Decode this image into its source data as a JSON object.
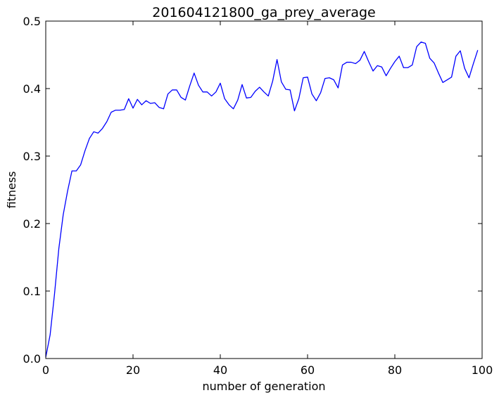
{
  "chart_data": {
    "type": "line",
    "title": "201604121800_ga_prey_average",
    "xlabel": "number of generation",
    "ylabel": "fitness",
    "xlim": [
      0,
      100
    ],
    "ylim": [
      0.0,
      0.5
    ],
    "xticks": [
      0,
      20,
      40,
      60,
      80,
      100
    ],
    "xtick_labels": [
      "0",
      "20",
      "40",
      "60",
      "80",
      "100"
    ],
    "yticks": [
      0.0,
      0.1,
      0.2,
      0.3,
      0.4,
      0.5
    ],
    "ytick_labels": [
      "0.0",
      "0.1",
      "0.2",
      "0.3",
      "0.4",
      "0.5"
    ],
    "grid": false,
    "line_color": "#0000ff",
    "series": [
      {
        "x": [
          0,
          1,
          2,
          3,
          4,
          5,
          6,
          7,
          8,
          9,
          10,
          11,
          12,
          13,
          14,
          15,
          16,
          17,
          18,
          19,
          20,
          21,
          22,
          23,
          24,
          25,
          26,
          27,
          28,
          29,
          30,
          31,
          32,
          33,
          34,
          35,
          36,
          37,
          38,
          39,
          40,
          41,
          42,
          43,
          44,
          45,
          46,
          47,
          48,
          49,
          50,
          51,
          52,
          53,
          54,
          55,
          56,
          57,
          58,
          59,
          60,
          61,
          62,
          63,
          64,
          65,
          66,
          67,
          68,
          69,
          70,
          71,
          72,
          73,
          74,
          75,
          76,
          77,
          78,
          79,
          80,
          81,
          82,
          83,
          84,
          85,
          86,
          87,
          88,
          89,
          90,
          91,
          92,
          93,
          94,
          95,
          96,
          97,
          98,
          99
        ],
        "values": [
          0.002,
          0.035,
          0.095,
          0.163,
          0.213,
          0.248,
          0.278,
          0.278,
          0.287,
          0.308,
          0.326,
          0.336,
          0.334,
          0.341,
          0.351,
          0.365,
          0.368,
          0.368,
          0.369,
          0.385,
          0.371,
          0.384,
          0.376,
          0.382,
          0.378,
          0.379,
          0.372,
          0.37,
          0.392,
          0.398,
          0.398,
          0.387,
          0.383,
          0.404,
          0.423,
          0.405,
          0.395,
          0.395,
          0.389,
          0.395,
          0.408,
          0.385,
          0.376,
          0.37,
          0.383,
          0.406,
          0.386,
          0.387,
          0.396,
          0.402,
          0.395,
          0.389,
          0.411,
          0.443,
          0.41,
          0.399,
          0.398,
          0.367,
          0.385,
          0.416,
          0.417,
          0.392,
          0.382,
          0.394,
          0.415,
          0.416,
          0.413,
          0.401,
          0.435,
          0.439,
          0.439,
          0.437,
          0.442,
          0.455,
          0.44,
          0.426,
          0.434,
          0.432,
          0.419,
          0.43,
          0.44,
          0.448,
          0.431,
          0.431,
          0.435,
          0.462,
          0.469,
          0.467,
          0.445,
          0.438,
          0.423,
          0.409,
          0.413,
          0.417,
          0.448,
          0.456,
          0.43,
          0.416,
          0.437,
          0.457
        ]
      }
    ]
  }
}
